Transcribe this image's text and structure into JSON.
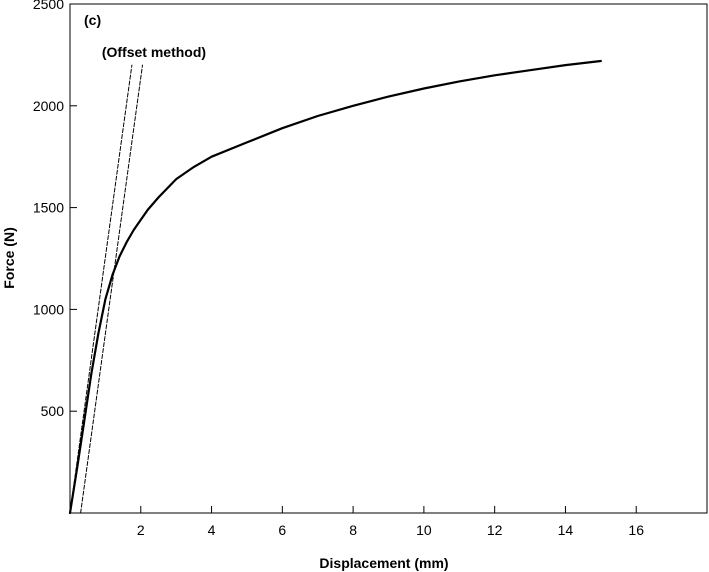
{
  "chart_data": {
    "type": "line",
    "panel_label": "(c)",
    "xlabel": "Displacement (mm)",
    "ylabel": "Force (N)",
    "xlim": [
      0,
      18
    ],
    "ylim": [
      0,
      2500
    ],
    "x_ticks": [
      2,
      4,
      6,
      8,
      10,
      12,
      14,
      16
    ],
    "y_ticks": [
      500,
      1000,
      1500,
      2000,
      2500
    ],
    "grid": false,
    "series": [
      {
        "x": [
          0,
          0.2,
          0.4,
          0.6,
          0.8,
          1.0,
          1.2,
          1.4,
          1.6,
          1.8,
          2.0,
          2.2,
          2.5,
          3.0,
          3.5,
          4.0,
          5.0,
          6.0,
          7.0,
          8.0,
          9.0,
          10.0,
          11.0,
          12.0,
          13.0,
          14.0,
          15.0
        ],
        "y": [
          0,
          220,
          450,
          680,
          880,
          1050,
          1170,
          1260,
          1330,
          1390,
          1440,
          1490,
          1550,
          1640,
          1700,
          1750,
          1820,
          1890,
          1950,
          2000,
          2045,
          2085,
          2120,
          2150,
          2175,
          2200,
          2220
        ],
        "color": "#000000",
        "style": "solid"
      },
      {
        "x": [
          0,
          1.75
        ],
        "y": [
          0,
          2200
        ],
        "color": "#000000",
        "style": "dashed"
      },
      {
        "x": [
          0.3,
          2.05
        ],
        "y": [
          0,
          2200
        ],
        "color": "#000000",
        "style": "dashed"
      }
    ],
    "annotations": [
      {
        "text": "(Offset method)",
        "x": 0.9,
        "y": 2240
      }
    ]
  }
}
